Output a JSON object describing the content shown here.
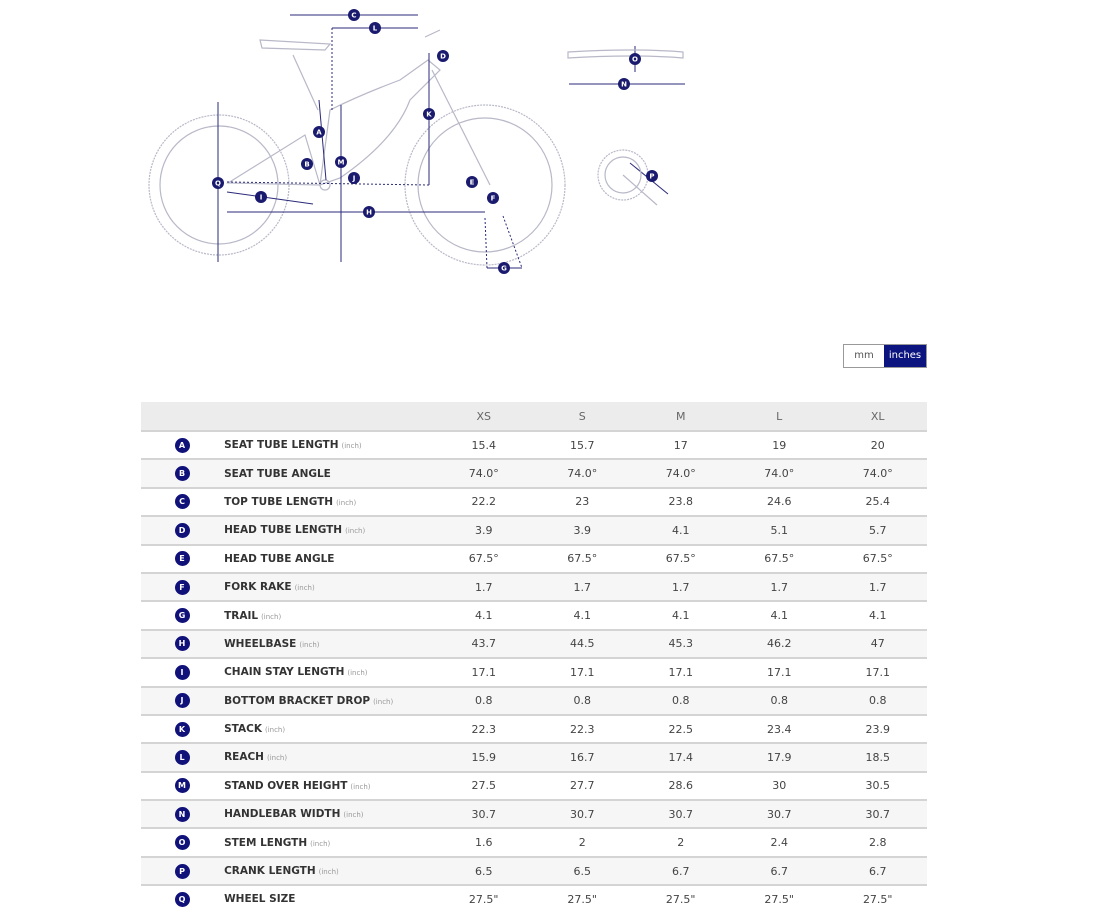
{
  "unit_toggle": {
    "mm": "mm",
    "inches": "inches",
    "selected": "inches"
  },
  "table": {
    "sizes": [
      "XS",
      "S",
      "M",
      "L",
      "XL"
    ],
    "rows": [
      {
        "letter": "A",
        "name": "SEAT TUBE LENGTH",
        "unit": "(inch)",
        "values": [
          "15.4",
          "15.7",
          "17",
          "19",
          "20"
        ]
      },
      {
        "letter": "B",
        "name": "SEAT TUBE ANGLE",
        "unit": "",
        "values": [
          "74.0°",
          "74.0°",
          "74.0°",
          "74.0°",
          "74.0°"
        ]
      },
      {
        "letter": "C",
        "name": "TOP TUBE LENGTH",
        "unit": "(inch)",
        "values": [
          "22.2",
          "23",
          "23.8",
          "24.6",
          "25.4"
        ]
      },
      {
        "letter": "D",
        "name": "HEAD TUBE LENGTH",
        "unit": "(inch)",
        "values": [
          "3.9",
          "3.9",
          "4.1",
          "5.1",
          "5.7"
        ]
      },
      {
        "letter": "E",
        "name": "HEAD TUBE ANGLE",
        "unit": "",
        "values": [
          "67.5°",
          "67.5°",
          "67.5°",
          "67.5°",
          "67.5°"
        ]
      },
      {
        "letter": "F",
        "name": "FORK RAKE",
        "unit": "(inch)",
        "values": [
          "1.7",
          "1.7",
          "1.7",
          "1.7",
          "1.7"
        ]
      },
      {
        "letter": "G",
        "name": "TRAIL",
        "unit": "(inch)",
        "values": [
          "4.1",
          "4.1",
          "4.1",
          "4.1",
          "4.1"
        ]
      },
      {
        "letter": "H",
        "name": "WHEELBASE",
        "unit": "(inch)",
        "values": [
          "43.7",
          "44.5",
          "45.3",
          "46.2",
          "47"
        ]
      },
      {
        "letter": "I",
        "name": "CHAIN STAY LENGTH",
        "unit": "(inch)",
        "values": [
          "17.1",
          "17.1",
          "17.1",
          "17.1",
          "17.1"
        ]
      },
      {
        "letter": "J",
        "name": "BOTTOM BRACKET DROP",
        "unit": "(inch)",
        "values": [
          "0.8",
          "0.8",
          "0.8",
          "0.8",
          "0.8"
        ]
      },
      {
        "letter": "K",
        "name": "STACK",
        "unit": "(inch)",
        "values": [
          "22.3",
          "22.3",
          "22.5",
          "23.4",
          "23.9"
        ]
      },
      {
        "letter": "L",
        "name": "REACH",
        "unit": "(inch)",
        "values": [
          "15.9",
          "16.7",
          "17.4",
          "17.9",
          "18.5"
        ]
      },
      {
        "letter": "M",
        "name": "STAND OVER HEIGHT",
        "unit": "(inch)",
        "values": [
          "27.5",
          "27.7",
          "28.6",
          "30",
          "30.5"
        ]
      },
      {
        "letter": "N",
        "name": "HANDLEBAR WIDTH",
        "unit": "(inch)",
        "values": [
          "30.7",
          "30.7",
          "30.7",
          "30.7",
          "30.7"
        ]
      },
      {
        "letter": "O",
        "name": "STEM LENGTH",
        "unit": "(inch)",
        "values": [
          "1.6",
          "2",
          "2",
          "2.4",
          "2.8"
        ]
      },
      {
        "letter": "P",
        "name": "CRANK LENGTH",
        "unit": "(inch)",
        "values": [
          "6.5",
          "6.5",
          "6.7",
          "6.7",
          "6.7"
        ]
      },
      {
        "letter": "Q",
        "name": "WHEEL SIZE",
        "unit": "",
        "values": [
          "27.5\"",
          "27.5\"",
          "27.5\"",
          "27.5\"",
          "27.5\""
        ]
      }
    ]
  },
  "colors": {
    "accent": "#10127a",
    "header_bg": "#ececec"
  }
}
